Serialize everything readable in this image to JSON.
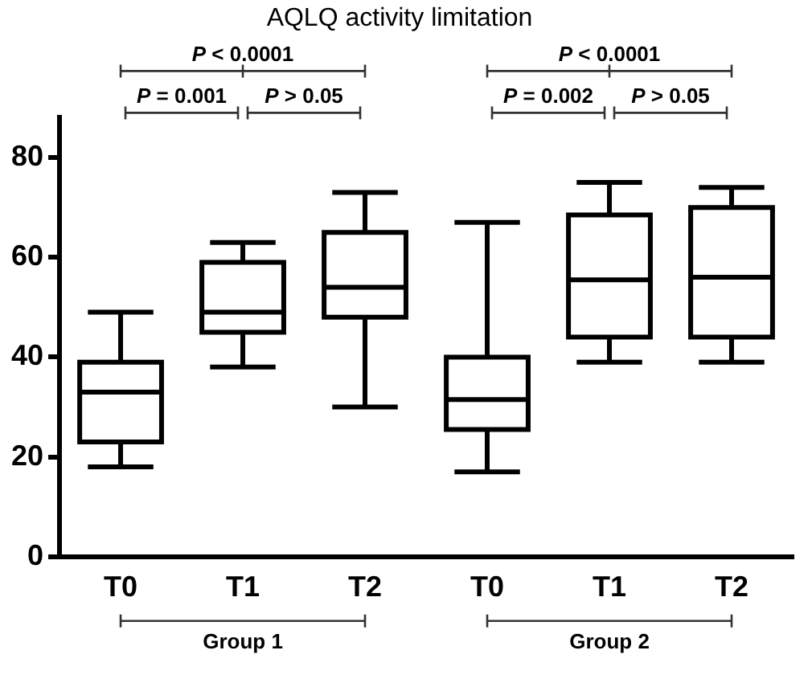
{
  "chart_data": {
    "type": "box",
    "title": "AQLQ activity limitation",
    "categories": [
      "T0",
      "T1",
      "T2",
      "T0",
      "T1",
      "T2"
    ],
    "boxes": [
      {
        "low": 18,
        "q1": 23,
        "median": 33,
        "q3": 39,
        "high": 49
      },
      {
        "low": 38,
        "q1": 45,
        "median": 49,
        "q3": 59,
        "high": 63
      },
      {
        "low": 30,
        "q1": 48,
        "median": 54,
        "q3": 65,
        "high": 73
      },
      {
        "low": 17,
        "q1": 25.5,
        "median": 31.5,
        "q3": 40,
        "high": 67
      },
      {
        "low": 39,
        "q1": 44,
        "median": 55.5,
        "q3": 68.5,
        "high": 75
      },
      {
        "low": 39,
        "q1": 44,
        "median": 56,
        "q3": 70,
        "high": 74
      }
    ],
    "color": "#000000",
    "ylim": [
      0,
      88
    ],
    "yticks": [
      0,
      20,
      40,
      60,
      80
    ],
    "annotations": [
      "P < 0.0001",
      "P = 0.001",
      "P > 0.05",
      "P < 0.0001",
      "P = 0.002",
      "P > 0.05",
      "Group 1",
      "Group 2"
    ],
    "grid": false,
    "legend": false
  }
}
